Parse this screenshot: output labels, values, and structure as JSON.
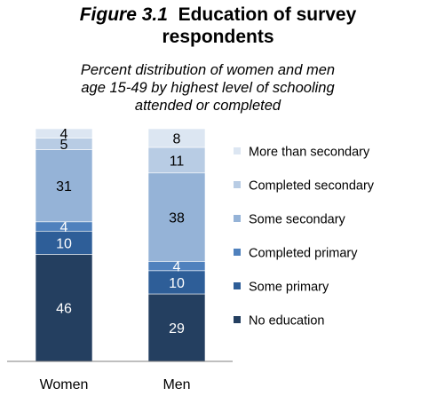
{
  "figure": {
    "number": "Figure 3.1",
    "title_line1": "Education of survey",
    "title_line2": "respondents",
    "subtitle_line1": "Percent distribution of women and men",
    "subtitle_line2": "age 15-49 by highest level of schooling",
    "subtitle_line3": "attended or completed"
  },
  "chart_data": {
    "type": "bar",
    "stacked": true,
    "categories": [
      "Women",
      "Men"
    ],
    "ylim": [
      0,
      100
    ],
    "grid": false,
    "legend_position": "right",
    "series": [
      {
        "name": "No education",
        "values": [
          46,
          29
        ],
        "color": "#243f60",
        "label_color": "#ffffff"
      },
      {
        "name": "Some primary",
        "values": [
          10,
          10
        ],
        "color": "#2e5e98",
        "label_color": "#ffffff"
      },
      {
        "name": "Completed primary",
        "values": [
          4,
          4
        ],
        "color": "#4f81bd",
        "label_color": "#ffffff"
      },
      {
        "name": "Some secondary",
        "values": [
          31,
          38
        ],
        "color": "#95b3d7",
        "label_color": "#000000"
      },
      {
        "name": "Completed secondary",
        "values": [
          5,
          11
        ],
        "color": "#b8cce4",
        "label_color": "#000000"
      },
      {
        "name": "More than secondary",
        "values": [
          4,
          8
        ],
        "color": "#dce6f2",
        "label_color": "#000000"
      }
    ]
  }
}
